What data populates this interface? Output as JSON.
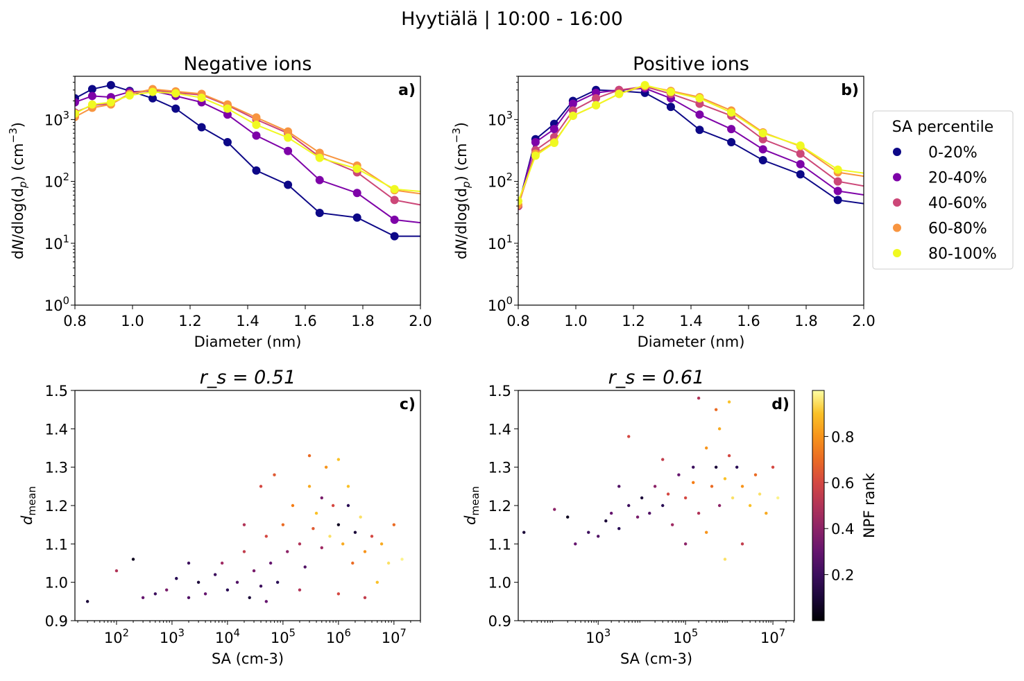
{
  "suptitle": "Hyytiälä | 10:00 - 16:00",
  "chart_data": [
    {
      "type": "line",
      "panel_label": "a)",
      "title": "Negative ions",
      "xlabel": "Diameter (nm)",
      "ylabel": "dN/dlog(dp) (cm-3)",
      "xlim": [
        0.8,
        2.0
      ],
      "ylim": [
        1,
        5000
      ],
      "yscale": "log",
      "xticks": [
        "0.8",
        "1.0",
        "1.2",
        "1.4",
        "1.6",
        "1.8",
        "2.0"
      ],
      "yticks": [
        {
          "base": "10",
          "exp": "0"
        },
        {
          "base": "10",
          "exp": "1"
        },
        {
          "base": "10",
          "exp": "2"
        },
        {
          "base": "10",
          "exp": "3"
        }
      ],
      "x": [
        0.8,
        0.86,
        0.925,
        0.99,
        1.07,
        1.15,
        1.24,
        1.33,
        1.43,
        1.54,
        1.65,
        1.78,
        1.91,
        2.06
      ],
      "series": [
        {
          "name": "0-20%",
          "color": "#0d0887",
          "values": [
            2200,
            3100,
            3600,
            2900,
            2200,
            1500,
            750,
            430,
            150,
            88,
            31,
            26,
            13,
            13
          ]
        },
        {
          "name": "20-40%",
          "color": "#7e03a8",
          "values": [
            1900,
            2400,
            2300,
            2800,
            2900,
            2400,
            1900,
            1200,
            550,
            310,
            105,
            65,
            24,
            20
          ]
        },
        {
          "name": "40-60%",
          "color": "#cc4778",
          "values": [
            1300,
            1700,
            1800,
            2600,
            3000,
            2700,
            2500,
            1700,
            1000,
            600,
            250,
            140,
            50,
            37
          ]
        },
        {
          "name": "60-80%",
          "color": "#f89540",
          "values": [
            1100,
            1550,
            1750,
            2600,
            3100,
            2850,
            2600,
            1750,
            1080,
            640,
            290,
            180,
            72,
            58
          ]
        },
        {
          "name": "80-100%",
          "color": "#f0f921",
          "values": [
            1250,
            1750,
            1900,
            2450,
            2800,
            2650,
            2250,
            1500,
            820,
            510,
            240,
            160,
            75,
            65
          ]
        }
      ]
    },
    {
      "type": "line",
      "panel_label": "b)",
      "title": "Positive ions",
      "xlabel": "Diameter (nm)",
      "ylabel": "dN/dlog(dp) (cm-3)",
      "xlim": [
        0.8,
        2.0
      ],
      "ylim": [
        1,
        5000
      ],
      "yscale": "log",
      "xticks": [
        "0.8",
        "1.0",
        "1.2",
        "1.4",
        "1.6",
        "1.8",
        "2.0"
      ],
      "yticks": [
        {
          "base": "10",
          "exp": "0"
        },
        {
          "base": "10",
          "exp": "1"
        },
        {
          "base": "10",
          "exp": "2"
        },
        {
          "base": "10",
          "exp": "3"
        }
      ],
      "x": [
        0.8,
        0.86,
        0.925,
        0.99,
        1.07,
        1.15,
        1.24,
        1.33,
        1.43,
        1.54,
        1.65,
        1.78,
        1.91,
        2.06
      ],
      "series": [
        {
          "name": "0-20%",
          "color": "#0d0887",
          "values": [
            40,
            480,
            850,
            2000,
            3000,
            2900,
            2700,
            1600,
            680,
            430,
            220,
            130,
            50,
            40
          ]
        },
        {
          "name": "20-40%",
          "color": "#7e03a8",
          "values": [
            40,
            430,
            700,
            1800,
            2700,
            3000,
            3200,
            2200,
            1200,
            700,
            330,
            190,
            70,
            55
          ]
        },
        {
          "name": "40-60%",
          "color": "#cc4778",
          "values": [
            40,
            320,
            520,
            1400,
            2200,
            3000,
            3400,
            2600,
            1800,
            1150,
            480,
            280,
            100,
            75
          ]
        },
        {
          "name": "60-80%",
          "color": "#f89540",
          "values": [
            42,
            280,
            430,
            1150,
            1700,
            2600,
            3500,
            2900,
            2300,
            1400,
            620,
            370,
            140,
            110
          ]
        },
        {
          "name": "80-100%",
          "color": "#f0f921",
          "values": [
            48,
            260,
            420,
            1150,
            1700,
            2600,
            3600,
            2800,
            2200,
            1300,
            600,
            380,
            155,
            125
          ]
        }
      ],
      "legend": {
        "title": "SA percentile",
        "placement": "right-outside"
      }
    },
    {
      "type": "scatter",
      "panel_label": "c)",
      "title": "r_s = 0.51",
      "title_parts": {
        "var": "r",
        "sub": "s",
        "rest": " = 0.51"
      },
      "xlabel": "SA (cm-3)",
      "ylabel": "d_mean",
      "xscale": "log",
      "xlim": [
        17.8,
        30000000
      ],
      "ylim": [
        0.9,
        1.5
      ],
      "xticks": [
        {
          "v": 100,
          "base": "10",
          "exp": "2"
        },
        {
          "v": 1000,
          "base": "10",
          "exp": "3"
        },
        {
          "v": 10000,
          "base": "10",
          "exp": "4"
        },
        {
          "v": 100000,
          "base": "10",
          "exp": "5"
        },
        {
          "v": 1000000,
          "base": "10",
          "exp": "6"
        },
        {
          "v": 10000000,
          "base": "10",
          "exp": "7"
        }
      ],
      "yticks": [
        "0.9",
        "1.0",
        "1.1",
        "1.2",
        "1.3",
        "1.4",
        "1.5"
      ],
      "points_sa_d_rank": [
        [
          30,
          0.95,
          0.1
        ],
        [
          100,
          1.03,
          0.5
        ],
        [
          200,
          1.06,
          0.05
        ],
        [
          300,
          0.96,
          0.3
        ],
        [
          500,
          0.97,
          0.2
        ],
        [
          800,
          0.98,
          0.35
        ],
        [
          1200,
          1.01,
          0.15
        ],
        [
          2000,
          0.96,
          0.25
        ],
        [
          3000,
          1.0,
          0.1
        ],
        [
          4000,
          0.97,
          0.3
        ],
        [
          6000,
          1.02,
          0.2
        ],
        [
          8000,
          1.05,
          0.45
        ],
        [
          10000,
          0.98,
          0.15
        ],
        [
          15000,
          1.0,
          0.25
        ],
        [
          20000,
          1.08,
          0.55
        ],
        [
          25000,
          0.96,
          0.1
        ],
        [
          30000,
          1.03,
          0.35
        ],
        [
          40000,
          0.99,
          0.2
        ],
        [
          50000,
          1.12,
          0.6
        ],
        [
          60000,
          1.05,
          0.3
        ],
        [
          80000,
          1.0,
          0.15
        ],
        [
          100000,
          1.15,
          0.7
        ],
        [
          120000,
          1.08,
          0.4
        ],
        [
          150000,
          1.2,
          0.75
        ],
        [
          200000,
          1.1,
          0.5
        ],
        [
          250000,
          1.04,
          0.25
        ],
        [
          300000,
          1.25,
          0.85
        ],
        [
          350000,
          1.14,
          0.65
        ],
        [
          400000,
          1.18,
          0.9
        ],
        [
          500000,
          1.09,
          0.45
        ],
        [
          600000,
          1.3,
          0.8
        ],
        [
          700000,
          1.12,
          0.95
        ],
        [
          800000,
          1.2,
          0.6
        ],
        [
          1000000,
          1.15,
          0.05
        ],
        [
          1200000,
          1.1,
          0.85
        ],
        [
          1500000,
          1.25,
          0.9
        ],
        [
          1800000,
          1.05,
          0.7
        ],
        [
          2000000,
          1.13,
          0.1
        ],
        [
          2500000,
          1.17,
          0.95
        ],
        [
          3000000,
          1.08,
          0.8
        ],
        [
          4000000,
          1.12,
          0.6
        ],
        [
          5000000,
          1.0,
          0.9
        ],
        [
          6000000,
          1.1,
          0.85
        ],
        [
          8000000,
          1.05,
          0.95
        ],
        [
          10000000,
          1.15,
          0.7
        ],
        [
          14000000,
          1.06,
          0.98
        ],
        [
          300000,
          1.33,
          0.7
        ],
        [
          1000000,
          1.32,
          0.9
        ],
        [
          40000,
          1.25,
          0.6
        ],
        [
          2000,
          1.05,
          0.2
        ],
        [
          50000,
          0.95,
          0.3
        ],
        [
          200000,
          0.98,
          0.5
        ],
        [
          1000000,
          0.97,
          0.6
        ],
        [
          3000000,
          0.96,
          0.55
        ],
        [
          500000,
          1.22,
          0.35
        ],
        [
          20000,
          1.15,
          0.5
        ],
        [
          70000,
          1.28,
          0.65
        ],
        [
          1500000,
          1.2,
          0.15
        ]
      ]
    },
    {
      "type": "scatter",
      "panel_label": "d)",
      "title": "r_s = 0.61",
      "title_parts": {
        "var": "r",
        "sub": "s",
        "rest": " = 0.61"
      },
      "xlabel": "SA (cm-3)",
      "ylabel": "d_mean",
      "xscale": "log",
      "xlim": [
        14.8,
        31000000
      ],
      "ylim": [
        0.9,
        1.5
      ],
      "xticks": [
        {
          "v": 1000,
          "base": "10",
          "exp": "3"
        },
        {
          "v": 100000,
          "base": "10",
          "exp": "5"
        },
        {
          "v": 10000000,
          "base": "10",
          "exp": "7"
        }
      ],
      "yticks": [
        "0.9",
        "1.0",
        "1.1",
        "1.2",
        "1.3",
        "1.4",
        "1.5"
      ],
      "points_sa_d_rank": [
        [
          20,
          1.13,
          0.1
        ],
        [
          100,
          1.19,
          0.4
        ],
        [
          200,
          1.17,
          0.05
        ],
        [
          300,
          1.1,
          0.3
        ],
        [
          600,
          1.13,
          0.2
        ],
        [
          1000,
          1.12,
          0.25
        ],
        [
          1500,
          1.16,
          0.1
        ],
        [
          2000,
          1.18,
          0.3
        ],
        [
          3000,
          1.14,
          0.15
        ],
        [
          5000,
          1.2,
          0.2
        ],
        [
          8000,
          1.17,
          0.35
        ],
        [
          10000,
          1.22,
          0.1
        ],
        [
          15000,
          1.18,
          0.25
        ],
        [
          20000,
          1.25,
          0.4
        ],
        [
          30000,
          1.2,
          0.15
        ],
        [
          50000,
          1.15,
          0.45
        ],
        [
          70000,
          1.28,
          0.3
        ],
        [
          100000,
          1.22,
          0.6
        ],
        [
          150000,
          1.3,
          0.2
        ],
        [
          200000,
          1.18,
          0.5
        ],
        [
          300000,
          1.35,
          0.8
        ],
        [
          400000,
          1.25,
          0.7
        ],
        [
          500000,
          1.3,
          0.1
        ],
        [
          600000,
          1.4,
          0.85
        ],
        [
          800000,
          1.27,
          0.9
        ],
        [
          1000000,
          1.33,
          0.6
        ],
        [
          1200000,
          1.22,
          0.95
        ],
        [
          1500000,
          1.3,
          0.15
        ],
        [
          2000000,
          1.25,
          0.8
        ],
        [
          3000000,
          1.2,
          0.9
        ],
        [
          4000000,
          1.28,
          0.7
        ],
        [
          5000000,
          1.23,
          0.95
        ],
        [
          7000000,
          1.18,
          0.85
        ],
        [
          10000000,
          1.3,
          0.6
        ],
        [
          13000000,
          1.22,
          0.98
        ],
        [
          500000,
          1.45,
          0.7
        ],
        [
          200000,
          1.48,
          0.5
        ],
        [
          1000000,
          1.47,
          0.9
        ],
        [
          5000,
          1.38,
          0.6
        ],
        [
          100000,
          1.1,
          0.4
        ],
        [
          300000,
          1.13,
          0.8
        ],
        [
          800000,
          1.06,
          0.95
        ],
        [
          2000000,
          1.1,
          0.55
        ],
        [
          3000,
          1.25,
          0.25
        ],
        [
          30000,
          1.32,
          0.55
        ],
        [
          600000,
          1.2,
          0.4
        ],
        [
          150000,
          1.26,
          0.75
        ],
        [
          40000,
          1.23,
          0.6
        ]
      ]
    }
  ],
  "colorbar": {
    "label": "NPF rank",
    "colormap": "inferno",
    "range": [
      0,
      1
    ],
    "ticks": [
      "0.2",
      "0.4",
      "0.6",
      "0.8"
    ]
  }
}
